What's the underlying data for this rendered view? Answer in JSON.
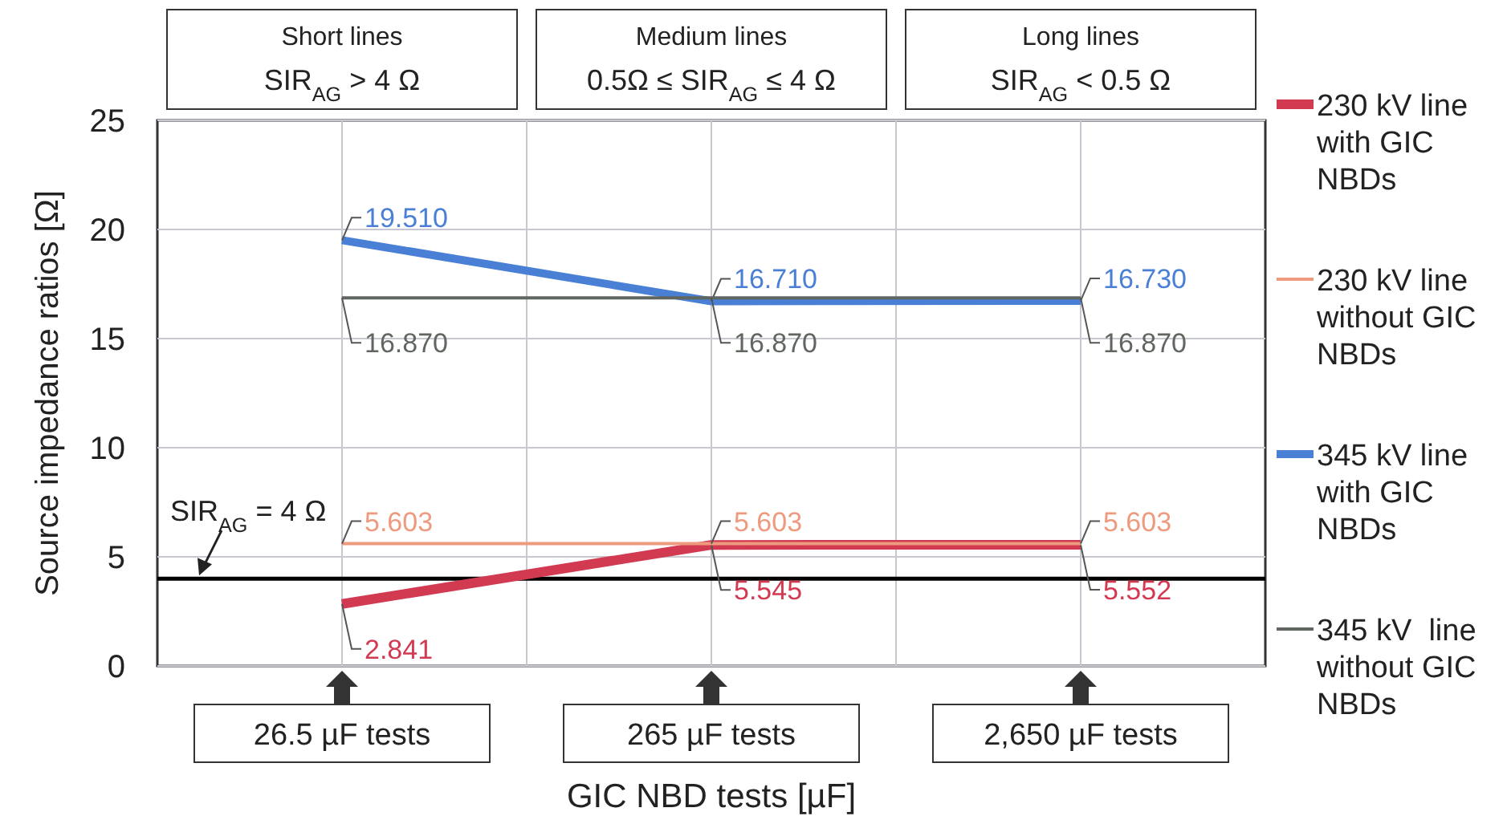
{
  "chart_data": {
    "type": "line",
    "xlabel": "GIC NBD tests [µF]",
    "ylabel": "Source impedance ratios [Ω]",
    "categories": [
      "26.5 µF tests",
      "265 µF tests",
      "2,650 µF tests"
    ],
    "ylim": [
      0,
      25
    ],
    "yticks": [
      0,
      5,
      10,
      15,
      20,
      25
    ],
    "grid": true,
    "legend": "right",
    "marker": "none",
    "series": [
      {
        "name": "230 kV line with GIC NBDs",
        "color": "#d23a52",
        "values": [
          2.841,
          5.545,
          5.552
        ],
        "value_labels": [
          "2.841",
          "5.545",
          "5.552"
        ]
      },
      {
        "name": "230 kV line without GIC NBDs",
        "color": "#ee9a7e",
        "values": [
          5.603,
          5.603,
          5.603
        ],
        "value_labels": [
          "5.603",
          "5.603",
          "5.603"
        ]
      },
      {
        "name": "345 kV line with GIC NBDs",
        "color": "#4a7fd6",
        "values": [
          19.51,
          16.71,
          16.73
        ],
        "value_labels": [
          "19.510",
          "16.710",
          "16.730"
        ]
      },
      {
        "name": "345 kV  line without GIC NBDs",
        "color": "#606660",
        "values": [
          16.87,
          16.87,
          16.87
        ],
        "value_labels": [
          "16.870",
          "16.870",
          "16.870"
        ]
      }
    ],
    "ref_lines": [
      {
        "axis": "y",
        "value": 4,
        "label": "SIR$_{AG}$ = 4  Ω",
        "color": "#000000"
      }
    ],
    "annotations": [
      "Short lines\nSIR$_{AG}$ > 4 Ω",
      "Medium lines\n0.5Ω  ≤ SIR$_{AG}$ ≤ 4 Ω",
      "Long lines\nSIR$_{AG}$ < 0.5 Ω"
    ]
  }
}
